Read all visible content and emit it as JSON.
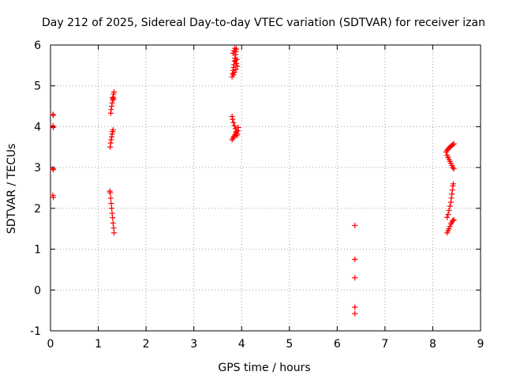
{
  "chart_data": {
    "type": "scatter",
    "title": "Day 212 of 2025, Sidereal Day-to-day VTEC variation (SDTVAR) for receiver izan",
    "xlabel": "GPS time / hours",
    "ylabel": "SDTVAR / TECUs",
    "xlim": [
      0,
      9
    ],
    "ylim": [
      -1,
      6
    ],
    "xticks": [
      "0",
      "1",
      "2",
      "3",
      "4",
      "5",
      "6",
      "7",
      "8",
      "9"
    ],
    "yticks": [
      "-1",
      "0",
      "1",
      "2",
      "3",
      "4",
      "5",
      "6"
    ],
    "grid": true,
    "marker": "+",
    "colors": {
      "marker": "#ff0000",
      "grid": "#a0a0a0",
      "axis": "#000000"
    },
    "series": [
      {
        "name": "SDTVAR",
        "points": [
          [
            0.05,
            4.3
          ],
          [
            0.06,
            4.28
          ],
          [
            0.05,
            4.02
          ],
          [
            0.06,
            3.98
          ],
          [
            0.05,
            2.97
          ],
          [
            0.06,
            2.95
          ],
          [
            0.05,
            2.32
          ],
          [
            0.06,
            2.27
          ],
          [
            1.26,
            4.33
          ],
          [
            1.27,
            4.42
          ],
          [
            1.28,
            4.5
          ],
          [
            1.29,
            4.58
          ],
          [
            1.3,
            4.65
          ],
          [
            1.31,
            4.72
          ],
          [
            1.32,
            4.8
          ],
          [
            1.33,
            4.85
          ],
          [
            1.3,
            4.7
          ],
          [
            1.32,
            4.68
          ],
          [
            1.25,
            3.5
          ],
          [
            1.26,
            3.6
          ],
          [
            1.27,
            3.68
          ],
          [
            1.28,
            3.75
          ],
          [
            1.29,
            3.82
          ],
          [
            1.3,
            3.88
          ],
          [
            1.31,
            3.92
          ],
          [
            1.24,
            2.42
          ],
          [
            1.25,
            2.38
          ],
          [
            1.26,
            2.25
          ],
          [
            1.27,
            2.12
          ],
          [
            1.28,
            2.0
          ],
          [
            1.29,
            1.88
          ],
          [
            1.3,
            1.77
          ],
          [
            1.31,
            1.64
          ],
          [
            1.32,
            1.52
          ],
          [
            1.33,
            1.4
          ],
          [
            3.8,
            5.22
          ],
          [
            3.81,
            5.3
          ],
          [
            3.82,
            5.38
          ],
          [
            3.83,
            5.45
          ],
          [
            3.84,
            5.52
          ],
          [
            3.85,
            5.6
          ],
          [
            3.86,
            5.68
          ],
          [
            3.87,
            5.76
          ],
          [
            3.88,
            5.84
          ],
          [
            3.89,
            5.9
          ],
          [
            3.82,
            5.8
          ],
          [
            3.84,
            5.86
          ],
          [
            3.86,
            5.92
          ],
          [
            3.87,
            5.62
          ],
          [
            3.89,
            5.55
          ],
          [
            3.91,
            5.48
          ],
          [
            3.85,
            5.33
          ],
          [
            3.88,
            5.4
          ],
          [
            3.83,
            5.27
          ],
          [
            3.9,
            5.65
          ],
          [
            3.8,
            4.25
          ],
          [
            3.81,
            4.18
          ],
          [
            3.83,
            4.1
          ],
          [
            3.85,
            4.02
          ],
          [
            3.87,
            3.95
          ],
          [
            3.89,
            3.88
          ],
          [
            3.91,
            3.82
          ],
          [
            3.92,
            3.9
          ],
          [
            3.93,
            3.98
          ],
          [
            3.8,
            3.68
          ],
          [
            3.82,
            3.72
          ],
          [
            3.84,
            3.76
          ],
          [
            3.86,
            3.8
          ],
          [
            3.88,
            3.85
          ],
          [
            3.9,
            3.78
          ],
          [
            6.37,
            1.58
          ],
          [
            6.37,
            0.75
          ],
          [
            6.37,
            0.3
          ],
          [
            6.37,
            -0.42
          ],
          [
            6.37,
            -0.58
          ],
          [
            8.28,
            3.38
          ],
          [
            8.3,
            3.42
          ],
          [
            8.32,
            3.45
          ],
          [
            8.34,
            3.48
          ],
          [
            8.36,
            3.5
          ],
          [
            8.38,
            3.52
          ],
          [
            8.4,
            3.54
          ],
          [
            8.42,
            3.56
          ],
          [
            8.44,
            3.58
          ],
          [
            8.3,
            3.3
          ],
          [
            8.32,
            3.25
          ],
          [
            8.34,
            3.2
          ],
          [
            8.36,
            3.15
          ],
          [
            8.38,
            3.1
          ],
          [
            8.4,
            3.05
          ],
          [
            8.42,
            3.0
          ],
          [
            8.44,
            2.97
          ],
          [
            8.3,
            1.78
          ],
          [
            8.32,
            1.85
          ],
          [
            8.34,
            1.95
          ],
          [
            8.36,
            2.05
          ],
          [
            8.38,
            2.15
          ],
          [
            8.39,
            2.25
          ],
          [
            8.4,
            2.35
          ],
          [
            8.41,
            2.45
          ],
          [
            8.42,
            2.55
          ],
          [
            8.43,
            2.6
          ],
          [
            8.3,
            1.4
          ],
          [
            8.32,
            1.45
          ],
          [
            8.34,
            1.5
          ],
          [
            8.36,
            1.56
          ],
          [
            8.38,
            1.62
          ],
          [
            8.4,
            1.66
          ],
          [
            8.42,
            1.7
          ],
          [
            8.44,
            1.72
          ]
        ]
      }
    ]
  }
}
